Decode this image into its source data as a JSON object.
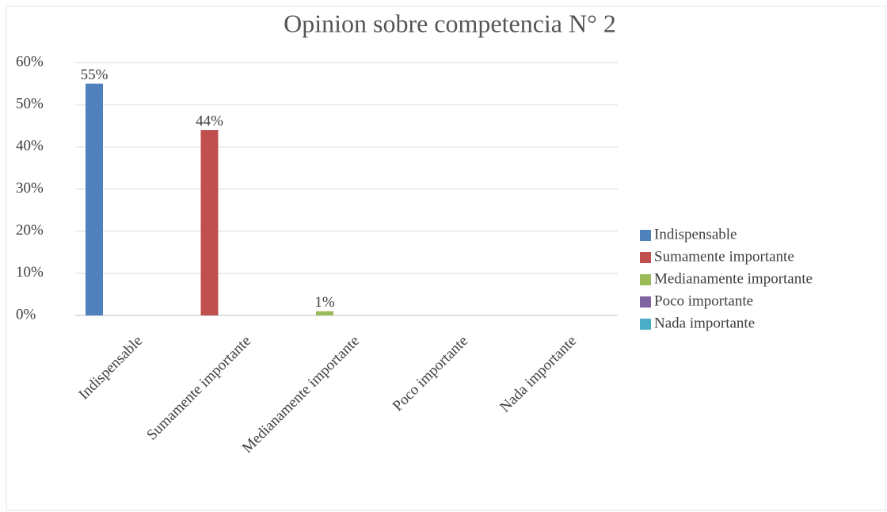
{
  "chart_data": {
    "type": "bar",
    "title": "Opinion sobre competencia N° 2",
    "categories": [
      "Indispensable",
      "Sumamente importante",
      "Medianamente importante",
      "Poco importante",
      "Nada importante"
    ],
    "series": [
      {
        "name": "Indispensable",
        "color": "#4f81bd",
        "values": [
          55,
          null,
          null,
          null,
          null
        ],
        "value_labels": [
          "55%",
          null,
          null,
          null,
          null
        ]
      },
      {
        "name": "Sumamente importante",
        "color": "#c0504d",
        "values": [
          null,
          44,
          null,
          null,
          null
        ],
        "value_labels": [
          null,
          "44%",
          null,
          null,
          null
        ]
      },
      {
        "name": "Medianamente importante",
        "color": "#9bbb59",
        "values": [
          null,
          null,
          1,
          null,
          null
        ],
        "value_labels": [
          null,
          null,
          "1%",
          null,
          null
        ]
      },
      {
        "name": "Poco importante",
        "color": "#8064a2",
        "values": [
          null,
          null,
          null,
          null,
          null
        ]
      },
      {
        "name": "Nada importante",
        "color": "#4bacc6",
        "values": [
          null,
          null,
          null,
          null,
          null
        ]
      }
    ],
    "ylim": [
      0,
      60
    ],
    "yticks": [
      {
        "value": 0,
        "label": "0%"
      },
      {
        "value": 10,
        "label": "10%"
      },
      {
        "value": 20,
        "label": "20%"
      },
      {
        "value": 30,
        "label": "30%"
      },
      {
        "value": 40,
        "label": "40%"
      },
      {
        "value": 50,
        "label": "50%"
      },
      {
        "value": 60,
        "label": "60%"
      }
    ],
    "grid": true,
    "legend": "right"
  }
}
